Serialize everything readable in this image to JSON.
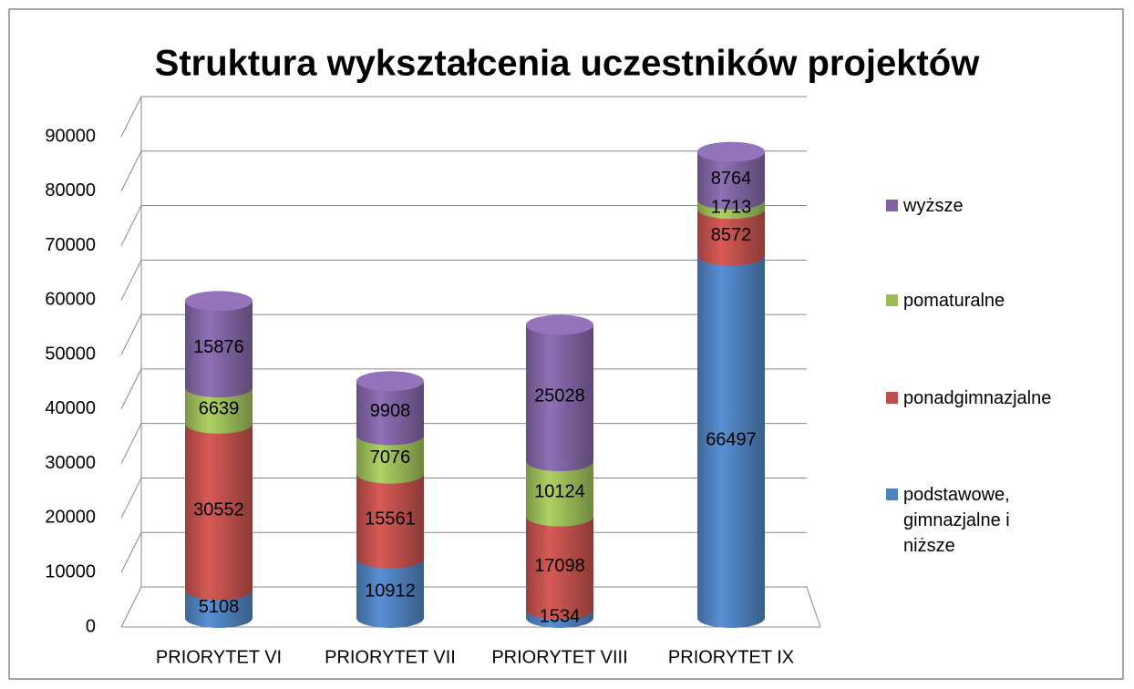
{
  "chart_data": {
    "type": "bar3d_stacked",
    "title": "Struktura wykształcenia uczestników projektów",
    "categories": [
      "PRIORYTET VI",
      "PRIORYTET VII",
      "PRIORYTET VIII",
      "PRIORYTET IX"
    ],
    "series": [
      {
        "name": "podstawowe, gimnazjalne i niższe",
        "color": "#4f81bd",
        "values": [
          5108,
          10912,
          1534,
          66497
        ]
      },
      {
        "name": "ponadgimnazjalne",
        "color": "#c0504d",
        "values": [
          30552,
          15561,
          17098,
          8572
        ]
      },
      {
        "name": "pomaturalne",
        "color": "#9bbb59",
        "values": [
          6639,
          7076,
          10124,
          1713
        ]
      },
      {
        "name": "wyższe",
        "color": "#8064a2",
        "values": [
          15876,
          9908,
          25028,
          8764
        ]
      }
    ],
    "ylim": [
      0,
      90000
    ],
    "yticks": [
      0,
      10000,
      20000,
      30000,
      40000,
      50000,
      60000,
      70000,
      80000,
      90000
    ],
    "grid": true,
    "legend": "right"
  }
}
